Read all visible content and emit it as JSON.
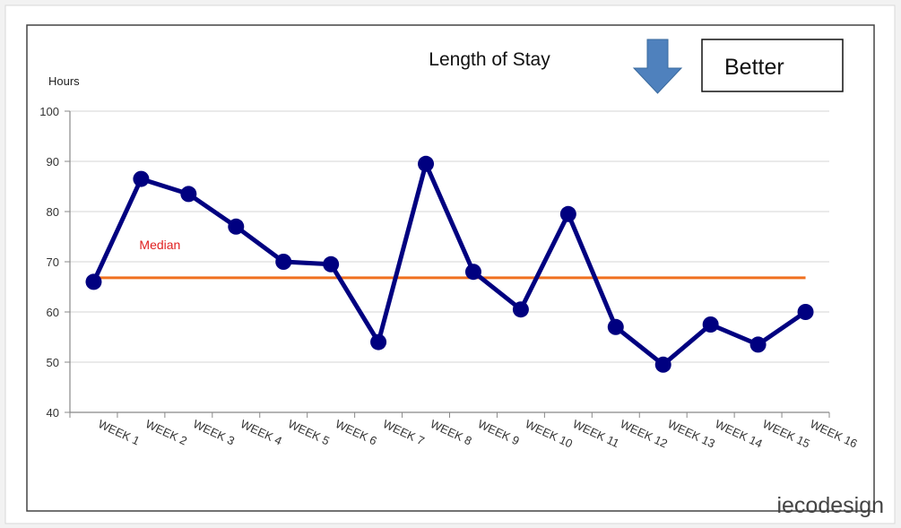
{
  "chart_data": {
    "type": "line",
    "title": "Length of Stay",
    "ylabel": "Hours",
    "xlabel": "",
    "ylim": [
      40,
      100
    ],
    "yticks": [
      40,
      50,
      60,
      70,
      80,
      90,
      100
    ],
    "categories": [
      "WEEK 1",
      "WEEK 2",
      "WEEK 3",
      "WEEK 4",
      "WEEK 5",
      "WEEK 6",
      "WEEK 7",
      "WEEK 8",
      "WEEK 9",
      "WEEK 10",
      "WEEK 11",
      "WEEK 12",
      "WEEK 13",
      "WEEK 14",
      "WEEK 15",
      "WEEK 16"
    ],
    "series": [
      {
        "values": [
          66,
          86.5,
          83.5,
          77,
          70,
          69.5,
          54,
          89.5,
          68,
          60.5,
          79.5,
          57,
          49.5,
          57.5,
          53.5,
          60
        ],
        "color": "#000080"
      }
    ],
    "median": {
      "label": "Median",
      "value": 66.8,
      "color": "#f07020",
      "label_color": "#e02020"
    },
    "grid": true,
    "annotations": {
      "better_label": "Better",
      "arrow": "down-arrow-icon",
      "arrow_color": "#4f81bd"
    }
  },
  "watermark": "iecodesign"
}
